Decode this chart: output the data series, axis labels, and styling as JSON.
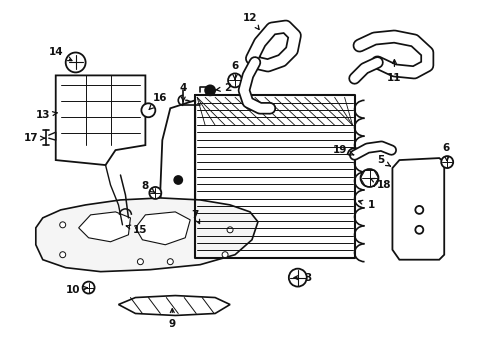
{
  "background_color": "#ffffff",
  "line_color": "#111111",
  "lw": 1.3,
  "fig_width": 4.89,
  "fig_height": 3.6,
  "dpi": 100
}
